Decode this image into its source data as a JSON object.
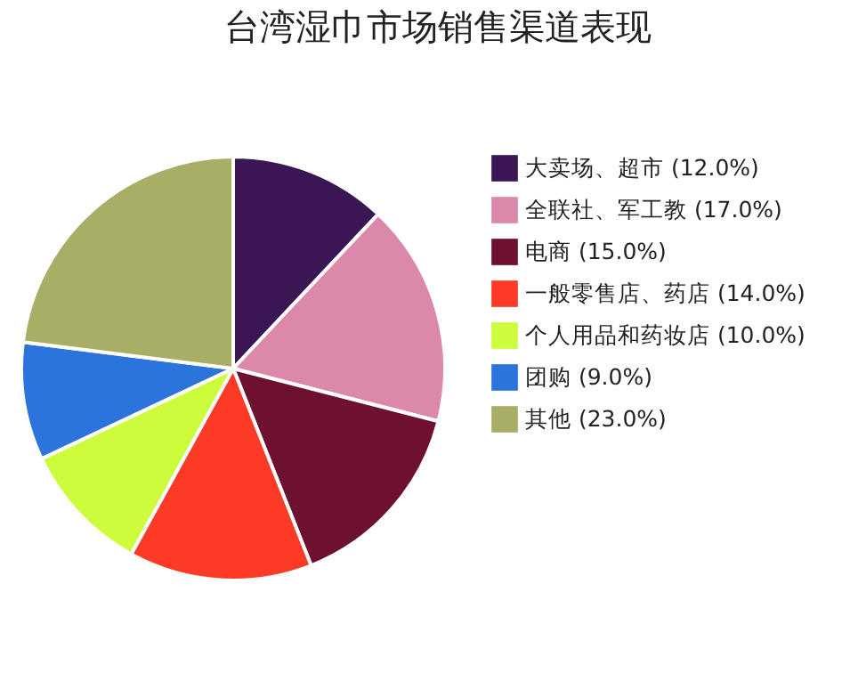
{
  "chart_data": {
    "type": "pie",
    "title": "台湾湿巾市场销售渠道表现",
    "categories": [
      "大卖场、超市 (12.0%)",
      "全联社、军工教 (17.0%)",
      "电商 (15.0%)",
      "一般零售店、药店 (14.0%)",
      "个人用品和药妆店 (10.0%)",
      "团购 (9.0%)",
      "其他 (23.0%)"
    ],
    "values": [
      12,
      17,
      15,
      14,
      10,
      9,
      23
    ],
    "colors": [
      "#3a1655",
      "#dc88aa",
      "#6e1030",
      "#fc3a26",
      "#ccfc3c",
      "#2a74dc",
      "#a8ae66"
    ],
    "legend": "right"
  }
}
